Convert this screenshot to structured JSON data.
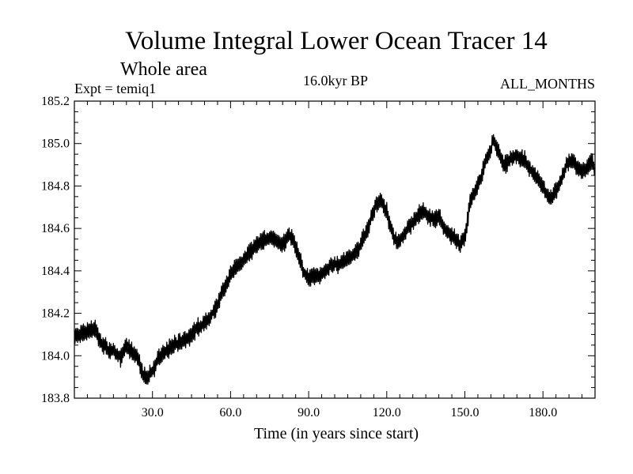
{
  "chart_data": {
    "type": "line",
    "title": "Volume Integral Lower Ocean Tracer 14",
    "subtitle": "Whole area",
    "experiment_label": "Expt = temiq1",
    "period_label": "16.0kyr BP",
    "months_label": "ALL_MONTHS",
    "xlabel": "Time (in years since start)",
    "ylabel": "",
    "xlim": [
      0,
      200
    ],
    "ylim": [
      183.8,
      185.2
    ],
    "x_ticks": [
      30,
      60,
      90,
      120,
      150,
      180
    ],
    "x_tick_labels": [
      "30.0",
      "60.0",
      "90.0",
      "120.0",
      "150.0",
      "180.0"
    ],
    "y_ticks": [
      183.8,
      184.0,
      184.2,
      184.4,
      184.6,
      184.8,
      185.0,
      185.2
    ],
    "y_tick_labels": [
      "183.8",
      "184.0",
      "184.2",
      "184.4",
      "184.6",
      "184.8",
      "185.0",
      "185.2"
    ],
    "grid": false,
    "series": [
      {
        "name": "Volume integral",
        "x": [
          0,
          3,
          6,
          8,
          10,
          13,
          16,
          18,
          20,
          22,
          24,
          26,
          28,
          30,
          32,
          35,
          38,
          42,
          45,
          48,
          51,
          54,
          57,
          60,
          62,
          64,
          66,
          68,
          70,
          72,
          75,
          78,
          80,
          82,
          84,
          86,
          88,
          90,
          92,
          94,
          96,
          98,
          100,
          103,
          106,
          109,
          112,
          114,
          116,
          118,
          120,
          122,
          124,
          126,
          128,
          130,
          132,
          134,
          136,
          138,
          140,
          142,
          144,
          146,
          148,
          150,
          152,
          154,
          156,
          158,
          160,
          161,
          163,
          165,
          167,
          169,
          171,
          173,
          175,
          177,
          179,
          181,
          183,
          185,
          187,
          189,
          191,
          193,
          195,
          197,
          199,
          200
        ],
        "values": [
          184.09,
          184.1,
          184.12,
          184.13,
          184.06,
          184.03,
          184.01,
          183.99,
          184.05,
          184.02,
          184.0,
          183.92,
          183.89,
          183.93,
          183.98,
          184.02,
          184.05,
          184.07,
          184.1,
          184.14,
          184.16,
          184.22,
          184.3,
          184.38,
          184.42,
          184.44,
          184.47,
          184.5,
          184.52,
          184.54,
          184.56,
          184.54,
          184.52,
          184.57,
          184.55,
          184.48,
          184.4,
          184.36,
          184.38,
          184.37,
          184.4,
          184.42,
          184.43,
          184.44,
          184.46,
          184.5,
          184.58,
          184.65,
          184.72,
          184.73,
          184.68,
          184.58,
          184.53,
          184.56,
          184.6,
          184.63,
          184.66,
          184.68,
          184.66,
          184.64,
          184.66,
          184.6,
          184.57,
          184.56,
          184.52,
          184.55,
          184.72,
          184.78,
          184.83,
          184.92,
          184.97,
          185.02,
          184.96,
          184.9,
          184.92,
          184.94,
          184.93,
          184.92,
          184.88,
          184.85,
          184.82,
          184.77,
          184.74,
          184.78,
          184.83,
          184.9,
          184.92,
          184.88,
          184.87,
          184.89,
          184.92,
          184.86
        ]
      }
    ]
  }
}
